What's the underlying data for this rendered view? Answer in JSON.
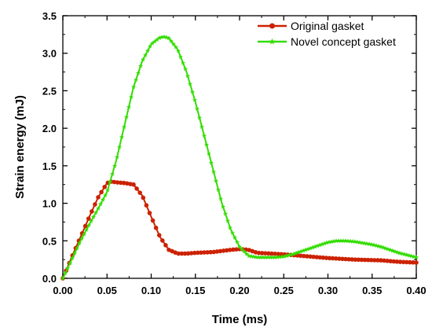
{
  "chart_data": {
    "type": "line",
    "xlabel": "Time (ms)",
    "ylabel": "Strain energy (mJ)",
    "xlim": [
      0.0,
      0.4
    ],
    "ylim": [
      0.0,
      3.5
    ],
    "xticks": [
      0.0,
      0.05,
      0.1,
      0.15,
      0.2,
      0.25,
      0.3,
      0.35,
      0.4
    ],
    "xtick_labels": [
      "0.00",
      "0.05",
      "0.10",
      "0.15",
      "0.20",
      "0.25",
      "0.30",
      "0.35",
      "0.40"
    ],
    "yticks": [
      0.0,
      0.5,
      1.0,
      1.5,
      2.0,
      2.5,
      3.0,
      3.5
    ],
    "ytick_labels": [
      "0.0",
      "0.5",
      "1.0",
      "1.5",
      "2.0",
      "2.5",
      "3.0",
      "3.5"
    ],
    "grid": false,
    "legend_position": "top-right",
    "series": [
      {
        "name": "Original gasket",
        "color": "#cc2200",
        "marker": "circle",
        "x": [
          0.0,
          0.01,
          0.02,
          0.03,
          0.04,
          0.05,
          0.055,
          0.06,
          0.07,
          0.08,
          0.09,
          0.1,
          0.11,
          0.12,
          0.13,
          0.14,
          0.15,
          0.17,
          0.19,
          0.2,
          0.21,
          0.22,
          0.25,
          0.28,
          0.3,
          0.33,
          0.36,
          0.38,
          0.4
        ],
        "y": [
          0.0,
          0.28,
          0.55,
          0.82,
          1.08,
          1.27,
          1.29,
          1.28,
          1.27,
          1.25,
          1.1,
          0.82,
          0.55,
          0.38,
          0.33,
          0.33,
          0.34,
          0.35,
          0.38,
          0.39,
          0.38,
          0.34,
          0.32,
          0.29,
          0.27,
          0.25,
          0.24,
          0.22,
          0.21
        ]
      },
      {
        "name": "Novel concept gasket",
        "color": "#33dd00",
        "marker": "star",
        "x": [
          0.0,
          0.01,
          0.02,
          0.03,
          0.04,
          0.05,
          0.06,
          0.07,
          0.08,
          0.09,
          0.1,
          0.11,
          0.115,
          0.12,
          0.13,
          0.14,
          0.15,
          0.16,
          0.17,
          0.18,
          0.19,
          0.2,
          0.21,
          0.22,
          0.23,
          0.24,
          0.25,
          0.26,
          0.27,
          0.28,
          0.29,
          0.3,
          0.31,
          0.32,
          0.33,
          0.34,
          0.35,
          0.36,
          0.37,
          0.38,
          0.39,
          0.4
        ],
        "y": [
          0.0,
          0.25,
          0.5,
          0.72,
          0.93,
          1.15,
          1.55,
          2.05,
          2.55,
          2.9,
          3.12,
          3.21,
          3.22,
          3.2,
          3.05,
          2.75,
          2.35,
          1.9,
          1.45,
          1.0,
          0.65,
          0.42,
          0.3,
          0.28,
          0.28,
          0.28,
          0.29,
          0.32,
          0.36,
          0.4,
          0.44,
          0.48,
          0.5,
          0.5,
          0.49,
          0.47,
          0.45,
          0.42,
          0.38,
          0.34,
          0.31,
          0.28
        ]
      }
    ]
  }
}
